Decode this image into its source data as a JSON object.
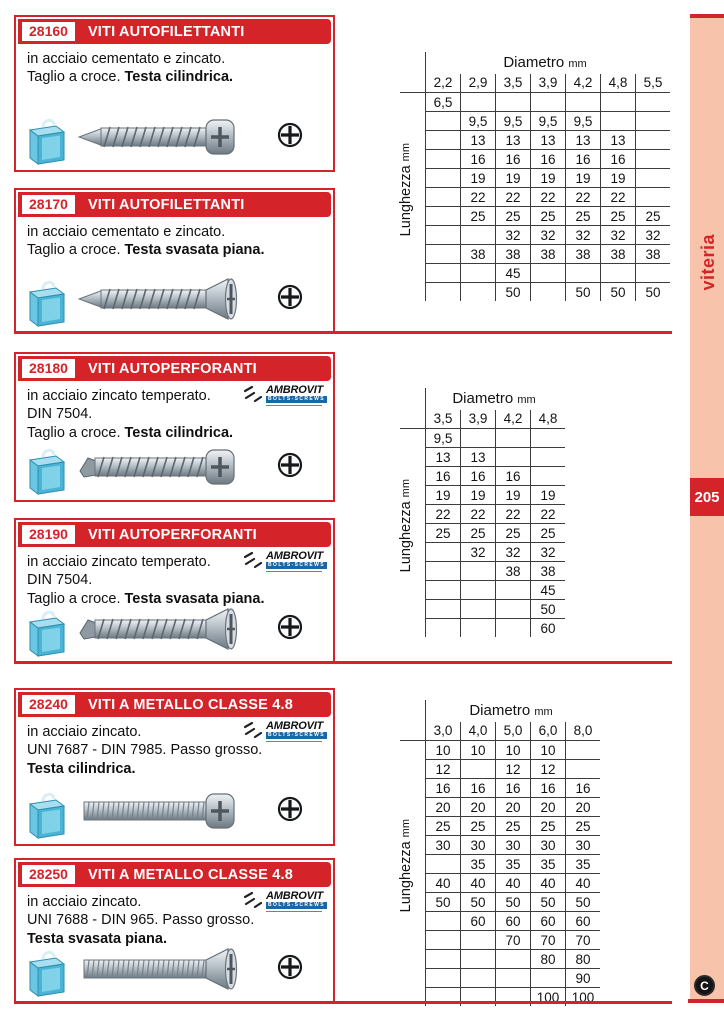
{
  "sidebar": {
    "tab_label": "viteria",
    "page_number": "205"
  },
  "footer": {
    "logo_letter": "C"
  },
  "brand": {
    "name": "AMBROVIT",
    "tagline": "BOLTS-SCREWS"
  },
  "colors": {
    "accent_red": "#d5232a",
    "sidebar_pink": "#f7c4ab",
    "brand_blue": "#1767a9"
  },
  "products": [
    {
      "code": "28160",
      "title": "VITI AUTOFILETTANTI",
      "has_brand_logo": false,
      "screw": {
        "head": "pan",
        "point": "sharp",
        "icon": "pan-head-self-tapping-screw"
      },
      "lines": [
        [
          {
            "t": "in acciaio cementato e zincato.",
            "b": false
          }
        ],
        [
          {
            "t": "Taglio a croce. ",
            "b": false
          },
          {
            "t": "Testa cilindrica.",
            "b": true
          }
        ]
      ]
    },
    {
      "code": "28170",
      "title": "VITI AUTOFILETTANTI",
      "has_brand_logo": false,
      "screw": {
        "head": "flat",
        "point": "sharp",
        "icon": "countersunk-self-tapping-screw"
      },
      "lines": [
        [
          {
            "t": "in acciaio cementato e zincato.",
            "b": false
          }
        ],
        [
          {
            "t": "Taglio a croce. ",
            "b": false
          },
          {
            "t": "Testa svasata piana.",
            "b": true
          }
        ]
      ]
    },
    {
      "code": "28180",
      "title": "VITI AUTOPERFORANTI",
      "has_brand_logo": true,
      "screw": {
        "head": "pan",
        "point": "drill",
        "icon": "pan-head-self-drilling-screw"
      },
      "lines": [
        [
          {
            "t": "in acciaio zincato temperato.",
            "b": false
          }
        ],
        [
          {
            "t": "DIN 7504.",
            "b": false
          }
        ],
        [
          {
            "t": "Taglio a croce. ",
            "b": false
          },
          {
            "t": "Testa cilindrica.",
            "b": true
          }
        ]
      ]
    },
    {
      "code": "28190",
      "title": "VITI AUTOPERFORANTI",
      "has_brand_logo": true,
      "screw": {
        "head": "flat",
        "point": "drill",
        "icon": "countersunk-self-drilling-screw"
      },
      "lines": [
        [
          {
            "t": "in acciaio zincato temperato.",
            "b": false
          }
        ],
        [
          {
            "t": "DIN 7504.",
            "b": false
          }
        ],
        [
          {
            "t": "Taglio a croce. ",
            "b": false
          },
          {
            "t": "Testa svasata piana.",
            "b": true
          }
        ]
      ]
    },
    {
      "code": "28240",
      "title": "VITI A METALLO CLASSE 4.8",
      "has_brand_logo": true,
      "screw": {
        "head": "pan",
        "point": "machine",
        "icon": "pan-head-machine-screw"
      },
      "lines": [
        [
          {
            "t": "in acciaio zincato.",
            "b": false
          }
        ],
        [
          {
            "t": "UNI 7687 - DIN 7985. Passo grosso.",
            "b": false
          }
        ],
        [
          {
            "t": "Testa cilindrica.",
            "b": true
          }
        ]
      ]
    },
    {
      "code": "28250",
      "title": "VITI A METALLO CLASSE 4.8",
      "has_brand_logo": true,
      "screw": {
        "head": "flat",
        "point": "machine",
        "icon": "countersunk-machine-screw"
      },
      "lines": [
        [
          {
            "t": "in acciaio zincato.",
            "b": false
          }
        ],
        [
          {
            "t": "UNI 7688 - DIN 965. Passo grosso.",
            "b": false
          }
        ],
        [
          {
            "t": "Testa svasata piana.",
            "b": true
          }
        ]
      ]
    }
  ],
  "tables": [
    {
      "col_title": "Diametro",
      "col_unit": "mm",
      "row_title": "Lunghezza",
      "row_unit": "mm",
      "columns": [
        "2,2",
        "2,9",
        "3,5",
        "3,9",
        "4,2",
        "4,8",
        "5,5"
      ],
      "rows": [
        [
          "6,5",
          "",
          "",
          "",
          "",
          "",
          ""
        ],
        [
          "",
          "9,5",
          "9,5",
          "9,5",
          "9,5",
          "",
          ""
        ],
        [
          "",
          "13",
          "13",
          "13",
          "13",
          "13",
          ""
        ],
        [
          "",
          "16",
          "16",
          "16",
          "16",
          "16",
          ""
        ],
        [
          "",
          "19",
          "19",
          "19",
          "19",
          "19",
          ""
        ],
        [
          "",
          "22",
          "22",
          "22",
          "22",
          "22",
          ""
        ],
        [
          "",
          "25",
          "25",
          "25",
          "25",
          "25",
          "25"
        ],
        [
          "",
          "",
          "32",
          "32",
          "32",
          "32",
          "32"
        ],
        [
          "",
          "38",
          "38",
          "38",
          "38",
          "38",
          "38"
        ],
        [
          "",
          "",
          "45",
          "",
          "",
          "",
          ""
        ],
        [
          "",
          "",
          "50",
          "",
          "50",
          "50",
          "50"
        ]
      ]
    },
    {
      "col_title": "Diametro",
      "col_unit": "mm",
      "row_title": "Lunghezza",
      "row_unit": "mm",
      "columns": [
        "3,5",
        "3,9",
        "4,2",
        "4,8"
      ],
      "rows": [
        [
          "9,5",
          "",
          "",
          ""
        ],
        [
          "13",
          "13",
          "",
          ""
        ],
        [
          "16",
          "16",
          "16",
          ""
        ],
        [
          "19",
          "19",
          "19",
          "19"
        ],
        [
          "22",
          "22",
          "22",
          "22"
        ],
        [
          "25",
          "25",
          "25",
          "25"
        ],
        [
          "",
          "32",
          "32",
          "32"
        ],
        [
          "",
          "",
          "38",
          "38"
        ],
        [
          "",
          "",
          "",
          "45"
        ],
        [
          "",
          "",
          "",
          "50"
        ],
        [
          "",
          "",
          "",
          "60"
        ]
      ]
    },
    {
      "col_title": "Diametro",
      "col_unit": "mm",
      "row_title": "Lunghezza",
      "row_unit": "mm",
      "columns": [
        "3,0",
        "4,0",
        "5,0",
        "6,0",
        "8,0"
      ],
      "rows": [
        [
          "10",
          "10",
          "10",
          "10",
          ""
        ],
        [
          "12",
          "",
          "12",
          "12",
          ""
        ],
        [
          "16",
          "16",
          "16",
          "16",
          "16"
        ],
        [
          "20",
          "20",
          "20",
          "20",
          "20"
        ],
        [
          "25",
          "25",
          "25",
          "25",
          "25"
        ],
        [
          "30",
          "30",
          "30",
          "30",
          "30"
        ],
        [
          "",
          "35",
          "35",
          "35",
          "35"
        ],
        [
          "40",
          "40",
          "40",
          "40",
          "40"
        ],
        [
          "50",
          "50",
          "50",
          "50",
          "50"
        ],
        [
          "",
          "60",
          "60",
          "60",
          "60"
        ],
        [
          "",
          "",
          "70",
          "70",
          "70"
        ],
        [
          "",
          "",
          "",
          "80",
          "80"
        ],
        [
          "",
          "",
          "",
          "",
          "90"
        ],
        [
          "",
          "",
          "",
          "100",
          "100"
        ]
      ]
    }
  ]
}
